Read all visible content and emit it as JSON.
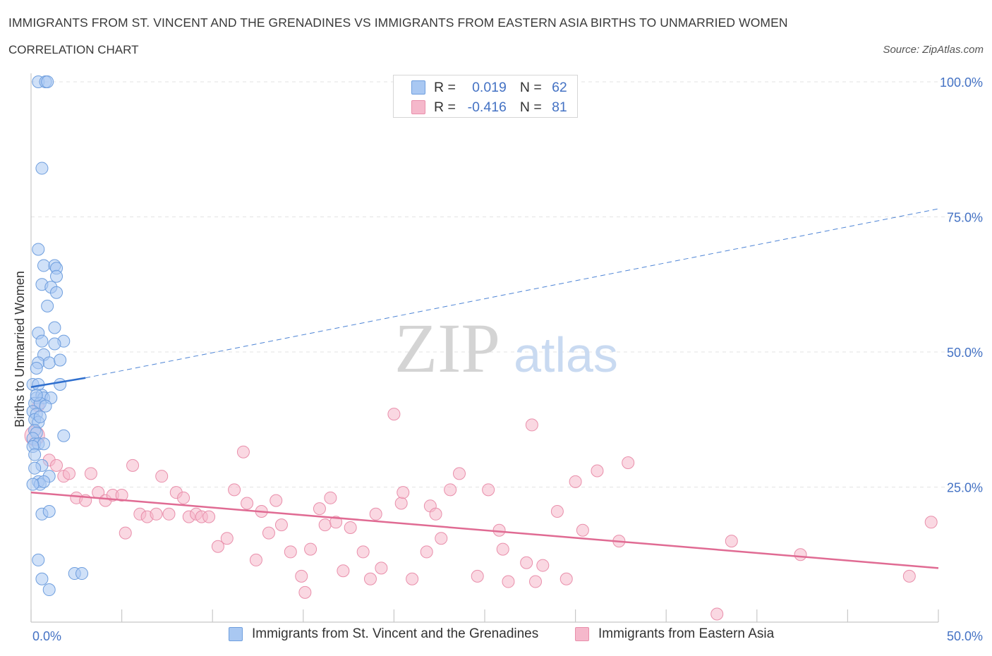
{
  "header": {
    "title": "IMMIGRANTS FROM ST. VINCENT AND THE GRENADINES VS IMMIGRANTS FROM EASTERN ASIA BIRTHS TO UNMARRIED WOMEN",
    "subtitle": "CORRELATION CHART",
    "source": "Source: ZipAtlas.com"
  },
  "legend_top": {
    "row1": {
      "r_label": "R =",
      "r_value": "0.019",
      "n_label": "N =",
      "n_value": "62"
    },
    "row2": {
      "r_label": "R =",
      "r_value": "-0.416",
      "n_label": "N =",
      "n_value": "81"
    }
  },
  "legend_bottom": {
    "series1": "Immigrants from St. Vincent and the Grenadines",
    "series2": "Immigrants from Eastern Asia"
  },
  "watermark": {
    "zip": "ZIP",
    "atlas": "atlas"
  },
  "colors": {
    "series1_fill": "#a9c8f2",
    "series1_stroke": "#6e9ede",
    "series1_line": "#2f6fce",
    "series2_fill": "#f5b8cb",
    "series2_stroke": "#e98fab",
    "series2_line": "#e06b93",
    "tick_label": "#4472c4",
    "grid": "#e3e3e3"
  },
  "chart_data": {
    "type": "scatter",
    "title": "IMMIGRANTS FROM ST. VINCENT AND THE GRENADINES VS IMMIGRANTS FROM EASTERN ASIA BIRTHS TO UNMARRIED WOMEN",
    "subtitle": "CORRELATION CHART",
    "xlabel": "",
    "ylabel": "Births to Unmarried Women",
    "xlim": [
      0,
      50
    ],
    "ylim": [
      0,
      100
    ],
    "x_tick_labels": [
      "0.0%",
      "50.0%"
    ],
    "y_ticks": [
      25,
      50,
      75,
      100
    ],
    "y_tick_labels": [
      "25.0%",
      "50.0%",
      "75.0%",
      "100.0%"
    ],
    "grid": true,
    "legend_position": "bottom",
    "series": [
      {
        "name": "Immigrants from St. Vincent and the Grenadines",
        "R": 0.019,
        "N": 62,
        "trend": {
          "x": [
            0.0,
            3.0
          ],
          "y": [
            43.5,
            45.2
          ],
          "dashed_extension": {
            "x": [
              3.0,
              50.0
            ],
            "y": [
              45.2,
              76.5
            ]
          }
        },
        "points": [
          [
            0.4,
            100
          ],
          [
            0.8,
            100
          ],
          [
            0.9,
            100
          ],
          [
            0.6,
            84
          ],
          [
            0.4,
            69
          ],
          [
            0.7,
            66
          ],
          [
            1.3,
            66
          ],
          [
            1.4,
            65.5
          ],
          [
            1.4,
            64
          ],
          [
            0.6,
            62.5
          ],
          [
            1.1,
            62
          ],
          [
            1.4,
            61
          ],
          [
            0.9,
            58.5
          ],
          [
            0.4,
            53.5
          ],
          [
            1.3,
            54.5
          ],
          [
            0.6,
            52
          ],
          [
            1.8,
            52
          ],
          [
            1.3,
            51.5
          ],
          [
            0.7,
            49.5
          ],
          [
            0.4,
            48
          ],
          [
            1.0,
            48
          ],
          [
            1.6,
            48.5
          ],
          [
            0.3,
            47
          ],
          [
            0.1,
            44
          ],
          [
            0.4,
            44
          ],
          [
            1.6,
            44
          ],
          [
            0.3,
            41.5
          ],
          [
            0.6,
            42
          ],
          [
            0.7,
            41.5
          ],
          [
            1.1,
            41.5
          ],
          [
            0.2,
            40.5
          ],
          [
            0.5,
            40.5
          ],
          [
            0.8,
            40
          ],
          [
            0.1,
            39
          ],
          [
            0.3,
            38.5
          ],
          [
            0.2,
            37.5
          ],
          [
            0.4,
            37
          ],
          [
            0.2,
            35.5
          ],
          [
            0.3,
            35
          ],
          [
            1.8,
            34.5
          ],
          [
            0.1,
            34
          ],
          [
            0.2,
            33
          ],
          [
            0.4,
            33
          ],
          [
            0.7,
            33
          ],
          [
            0.1,
            32.5
          ],
          [
            0.2,
            31
          ],
          [
            0.6,
            29
          ],
          [
            0.2,
            28.5
          ],
          [
            1.0,
            27
          ],
          [
            0.4,
            26
          ],
          [
            0.5,
            25.5
          ],
          [
            0.7,
            26
          ],
          [
            0.1,
            25.5
          ],
          [
            0.6,
            20
          ],
          [
            1.0,
            20.5
          ],
          [
            0.4,
            11.5
          ],
          [
            0.6,
            8
          ],
          [
            2.4,
            9
          ],
          [
            2.8,
            9
          ],
          [
            1.0,
            6
          ],
          [
            0.3,
            42
          ],
          [
            0.5,
            38
          ]
        ]
      },
      {
        "name": "Immigrants from Eastern Asia",
        "R": -0.416,
        "N": 81,
        "trend": {
          "x": [
            0.0,
            50.0
          ],
          "y": [
            24.0,
            10.0
          ]
        },
        "points": [
          [
            0.2,
            34.5
          ],
          [
            0.4,
            40
          ],
          [
            1.0,
            30
          ],
          [
            1.4,
            29
          ],
          [
            1.8,
            27
          ],
          [
            2.1,
            27.5
          ],
          [
            2.5,
            23
          ],
          [
            3.0,
            22.5
          ],
          [
            3.3,
            27.5
          ],
          [
            3.7,
            24
          ],
          [
            4.1,
            22.5
          ],
          [
            4.5,
            23.5
          ],
          [
            5.0,
            23.5
          ],
          [
            5.2,
            16.5
          ],
          [
            5.6,
            29
          ],
          [
            6.0,
            20
          ],
          [
            6.4,
            19.5
          ],
          [
            6.9,
            20
          ],
          [
            7.2,
            27
          ],
          [
            7.6,
            20
          ],
          [
            8.0,
            24
          ],
          [
            8.4,
            23
          ],
          [
            8.7,
            19.5
          ],
          [
            9.1,
            20
          ],
          [
            9.4,
            19.5
          ],
          [
            9.8,
            19.5
          ],
          [
            10.3,
            14
          ],
          [
            10.8,
            15.5
          ],
          [
            11.2,
            24.5
          ],
          [
            11.7,
            31.5
          ],
          [
            11.9,
            22
          ],
          [
            12.4,
            11.5
          ],
          [
            12.7,
            20.5
          ],
          [
            13.1,
            16.5
          ],
          [
            13.5,
            22.5
          ],
          [
            13.8,
            18
          ],
          [
            14.3,
            13
          ],
          [
            14.9,
            8.5
          ],
          [
            15.1,
            5.5
          ],
          [
            15.4,
            13.5
          ],
          [
            15.9,
            21
          ],
          [
            16.2,
            18
          ],
          [
            16.5,
            23
          ],
          [
            16.8,
            18.5
          ],
          [
            17.2,
            9.5
          ],
          [
            17.6,
            17.5
          ],
          [
            18.3,
            13
          ],
          [
            18.7,
            8
          ],
          [
            19.0,
            20
          ],
          [
            19.3,
            10
          ],
          [
            20.0,
            38.5
          ],
          [
            20.4,
            22
          ],
          [
            20.5,
            24
          ],
          [
            21.0,
            8
          ],
          [
            21.8,
            13
          ],
          [
            22.0,
            21.5
          ],
          [
            22.3,
            20
          ],
          [
            22.6,
            15.5
          ],
          [
            23.1,
            24.5
          ],
          [
            23.6,
            27.5
          ],
          [
            24.6,
            8.5
          ],
          [
            25.2,
            24.5
          ],
          [
            25.8,
            17
          ],
          [
            26.0,
            13.5
          ],
          [
            26.3,
            7.5
          ],
          [
            27.3,
            11
          ],
          [
            27.6,
            36.5
          ],
          [
            27.8,
            7.5
          ],
          [
            28.2,
            10.5
          ],
          [
            29.0,
            20.5
          ],
          [
            29.5,
            8
          ],
          [
            30.0,
            26
          ],
          [
            30.4,
            17
          ],
          [
            31.2,
            28
          ],
          [
            32.4,
            15
          ],
          [
            32.9,
            29.5
          ],
          [
            37.8,
            1.5
          ],
          [
            38.6,
            15
          ],
          [
            42.4,
            12.5
          ],
          [
            48.4,
            8.5
          ],
          [
            49.6,
            18.5
          ]
        ]
      }
    ]
  }
}
